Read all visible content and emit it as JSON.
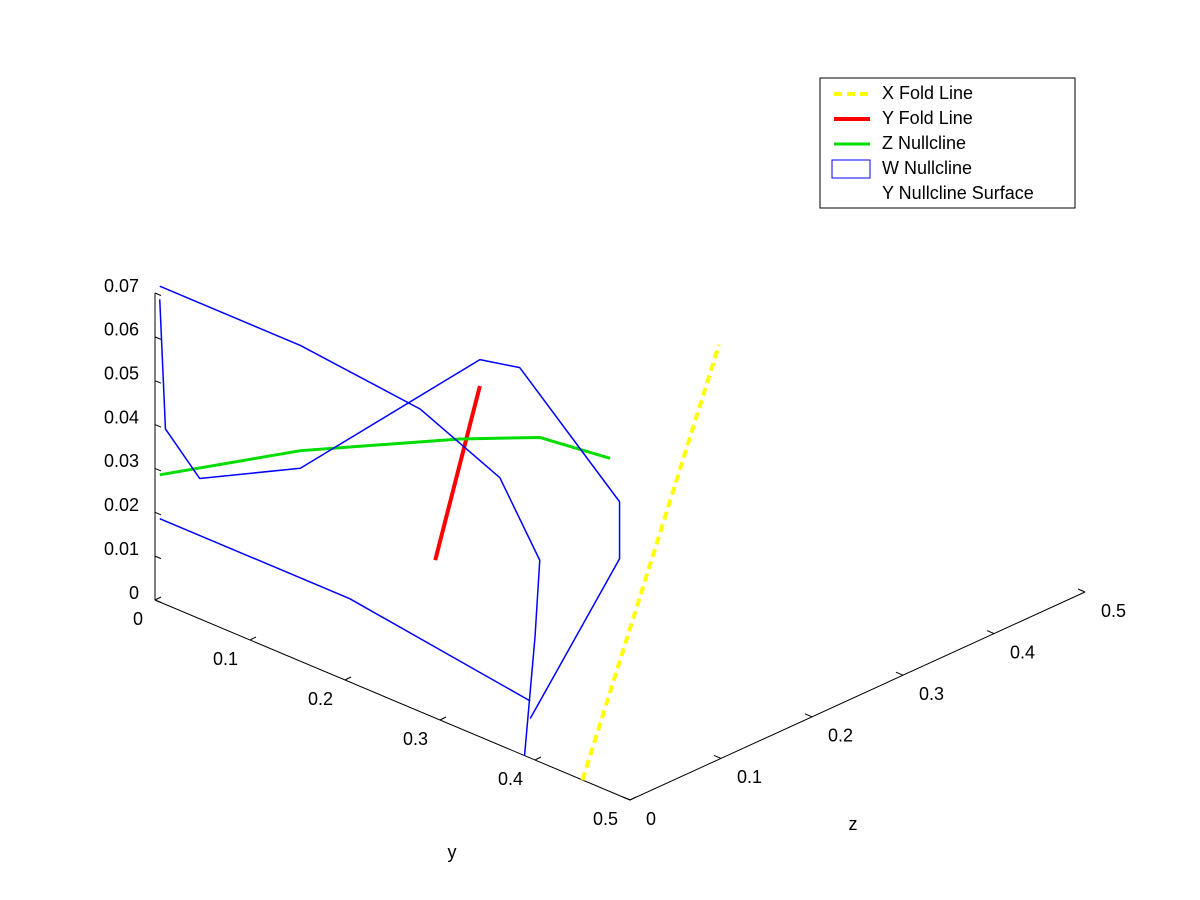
{
  "chart_data": {
    "type": "line3d",
    "xlabel": "y",
    "ylabel": "z",
    "ylim": [
      0,
      0.5
    ],
    "yticks": [
      0,
      0.1,
      0.2,
      0.3,
      0.4,
      0.5
    ],
    "zlim": [
      0,
      0.5
    ],
    "zticks": [
      0,
      0.1,
      0.2,
      0.3,
      0.4,
      0.5
    ],
    "wlim": [
      0,
      0.07
    ],
    "wticks": [
      0,
      0.01,
      0.02,
      0.03,
      0.04,
      0.05,
      0.06,
      0.07
    ],
    "legend": "upper right",
    "series": [
      {
        "name": "X Fold Line",
        "color": "#ffff00",
        "dash": true,
        "width": 4,
        "legend_sample": "line",
        "curves": [
          {
            "y": [
              0.45,
              0.45
            ],
            "z": [
              0,
              0.15
            ],
            "w": [
              0,
              0.085
            ]
          }
        ]
      },
      {
        "name": "Y Fold Line",
        "color": "#ff0000",
        "dash": false,
        "width": 4,
        "legend_sample": "line",
        "curves": [
          {
            "y": [
              0.295,
              0.342
            ],
            "z": [
              0,
              0
            ],
            "w": [
              0.036,
              0.08
            ]
          }
        ]
      },
      {
        "name": "Z Nullcline",
        "color": "#00dd00",
        "dash": false,
        "width": 3,
        "legend_sample": "line",
        "curves": [
          {
            "y": [
              0.005,
              0.153,
              0.321,
              0.405,
              0.479
            ],
            "z": [
              0,
              0,
              0,
              0,
              0
            ],
            "w": [
              0.029,
              0.048,
              0.066,
              0.074,
              0.076
            ]
          }
        ]
      },
      {
        "name": "W Nullcline",
        "color": "#0000ff",
        "dash": false,
        "width": 1.5,
        "legend_sample": "patch",
        "curves": [
          {
            "y": [
              0.005,
              0.153,
              0.279,
              0.363,
              0.405,
              0.4,
              0.389
            ],
            "z": [
              0,
              0,
              0,
              0,
              0,
              0,
              0
            ],
            "w": [
              0.072,
              0.072,
              0.069,
              0.061,
              0.046,
              0.028,
              0
            ]
          },
          {
            "y": [
              0.005,
              0.011,
              0.047,
              0.153,
              0.342,
              0.384,
              0.489,
              0.489,
              0.395
            ],
            "z": [
              0,
              0,
              0,
              0,
              0,
              0,
              0,
              0,
              0
            ],
            "w": [
              0.069,
              0.04,
              0.032,
              0.044,
              0.086,
              0.088,
              0.067,
              0.054,
              0.009
            ]
          },
          {
            "y": [
              0.005,
              0.205,
              0.395
            ],
            "z": [
              0,
              0,
              0
            ],
            "w": [
              0.019,
              0.019,
              0.013
            ]
          }
        ]
      },
      {
        "name": "Y Nullcline Surface",
        "legend_sample": "none"
      }
    ]
  }
}
